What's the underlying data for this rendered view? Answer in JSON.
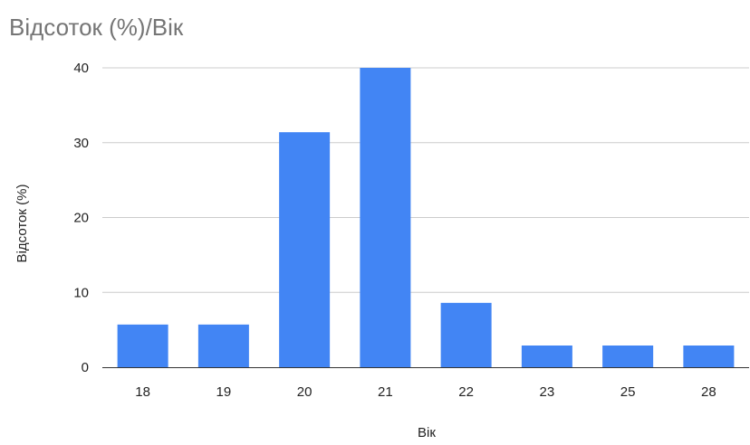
{
  "chart_data": {
    "type": "bar",
    "title": "Відсоток (%)/Вік",
    "xlabel": "Вік",
    "ylabel": "Відсоток (%)",
    "categories": [
      "18",
      "19",
      "20",
      "21",
      "22",
      "23",
      "25",
      "28"
    ],
    "values": [
      5.7,
      5.7,
      31.4,
      40,
      8.6,
      2.9,
      2.9,
      2.9
    ],
    "ylim": [
      0,
      40
    ],
    "yticks": [
      0,
      10,
      20,
      30,
      40
    ],
    "grid": true,
    "legend": "none",
    "colors": {
      "bar": "#4285f4",
      "title": "#757575",
      "grid": "#cccccc",
      "baseline": "#333333"
    }
  }
}
